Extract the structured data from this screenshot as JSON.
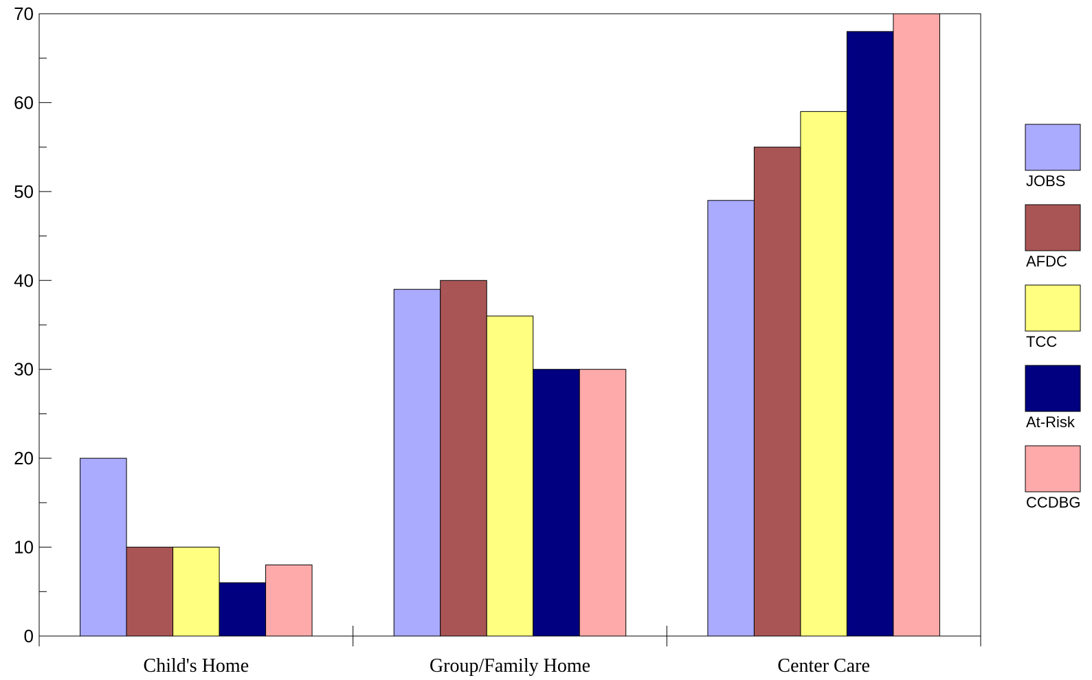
{
  "chart_data": {
    "type": "bar",
    "title": "",
    "xlabel": "",
    "ylabel": "",
    "ylim": [
      0,
      70
    ],
    "yticks": [
      0,
      10,
      20,
      30,
      40,
      50,
      60,
      70
    ],
    "grid": false,
    "legend_position": "right",
    "categories": [
      "Child's Home",
      "Group/Family Home",
      "Center Care"
    ],
    "series": [
      {
        "name": "JOBS",
        "color": "#aaaaff",
        "values": [
          20,
          39,
          49
        ]
      },
      {
        "name": "AFDC",
        "color": "#aa5555",
        "values": [
          10,
          40,
          55
        ]
      },
      {
        "name": "TCC",
        "color": "#ffff80",
        "values": [
          10,
          36,
          59
        ]
      },
      {
        "name": "At-Risk",
        "color": "#000080",
        "values": [
          6,
          30,
          68
        ]
      },
      {
        "name": "CCDBG",
        "color": "#ffaaaa",
        "values": [
          8,
          30,
          70
        ]
      }
    ]
  }
}
